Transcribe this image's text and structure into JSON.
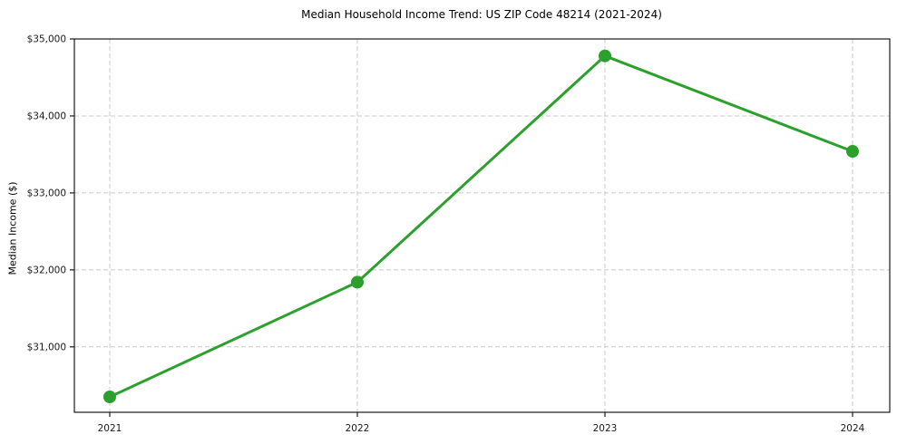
{
  "chart_data": {
    "type": "line",
    "title": "Median Household Income Trend: US ZIP Code 48214 (2021-2024)",
    "xlabel": "",
    "ylabel": "Median Income ($)",
    "categories": [
      "2021",
      "2022",
      "2023",
      "2024"
    ],
    "values": [
      30350,
      31840,
      34780,
      33540
    ],
    "ylim": [
      30150,
      35000
    ],
    "yticks": [
      {
        "value": 31000,
        "label": "$31,000"
      },
      {
        "value": 32000,
        "label": "$32,000"
      },
      {
        "value": 33000,
        "label": "$33,000"
      },
      {
        "value": 34000,
        "label": "$34,000"
      },
      {
        "value": 35000,
        "label": "$35,000"
      }
    ],
    "grid": {
      "visible": true,
      "style": "dashed",
      "horizontal": true,
      "vertical": true
    },
    "legend": "none",
    "colors": {
      "line": "#2ca02c",
      "marker": "#2ca02c",
      "grid": "#c9c9c9",
      "spine": "#1a1a1a",
      "tick_label": "#1a1a1a",
      "background": "#ffffff"
    }
  }
}
